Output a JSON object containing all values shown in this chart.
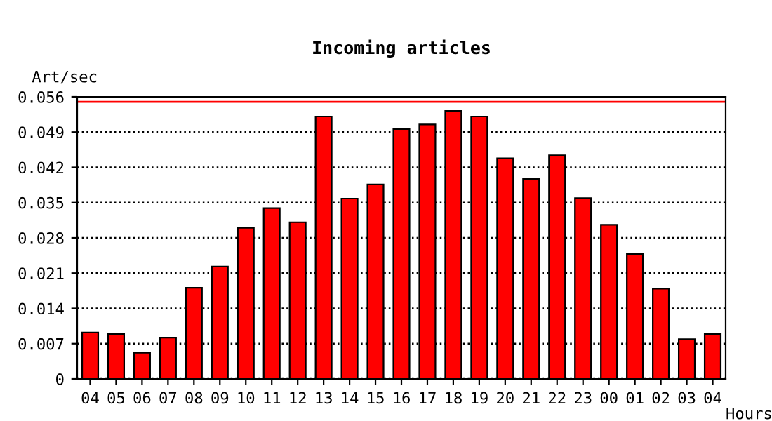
{
  "chart_data": {
    "type": "bar",
    "title": "Incoming articles",
    "ylabel": "Art/sec",
    "xlabel": "Hours",
    "categories": [
      "04",
      "05",
      "06",
      "07",
      "08",
      "09",
      "10",
      "11",
      "12",
      "13",
      "14",
      "15",
      "16",
      "17",
      "18",
      "19",
      "20",
      "21",
      "22",
      "23",
      "00",
      "01",
      "02",
      "03",
      "04"
    ],
    "values": [
      0.0092,
      0.0089,
      0.0052,
      0.0082,
      0.0181,
      0.0223,
      0.03,
      0.0339,
      0.0311,
      0.0521,
      0.0358,
      0.0386,
      0.0496,
      0.0505,
      0.0532,
      0.0521,
      0.0438,
      0.0397,
      0.0444,
      0.0359,
      0.0306,
      0.0248,
      0.0179,
      0.0079,
      0.0089
    ],
    "color": "#ff0000",
    "ylim": [
      0,
      0.056
    ],
    "yticks": [
      "0",
      0.007,
      0.014,
      0.021,
      0.028,
      0.035,
      0.042,
      0.049,
      0.056
    ],
    "grid": "y",
    "line_style": "dotted",
    "ref_lines": [
      {
        "axis": "y",
        "value": 0.055,
        "color": "#ff0000",
        "line_style": "solid"
      }
    ]
  }
}
